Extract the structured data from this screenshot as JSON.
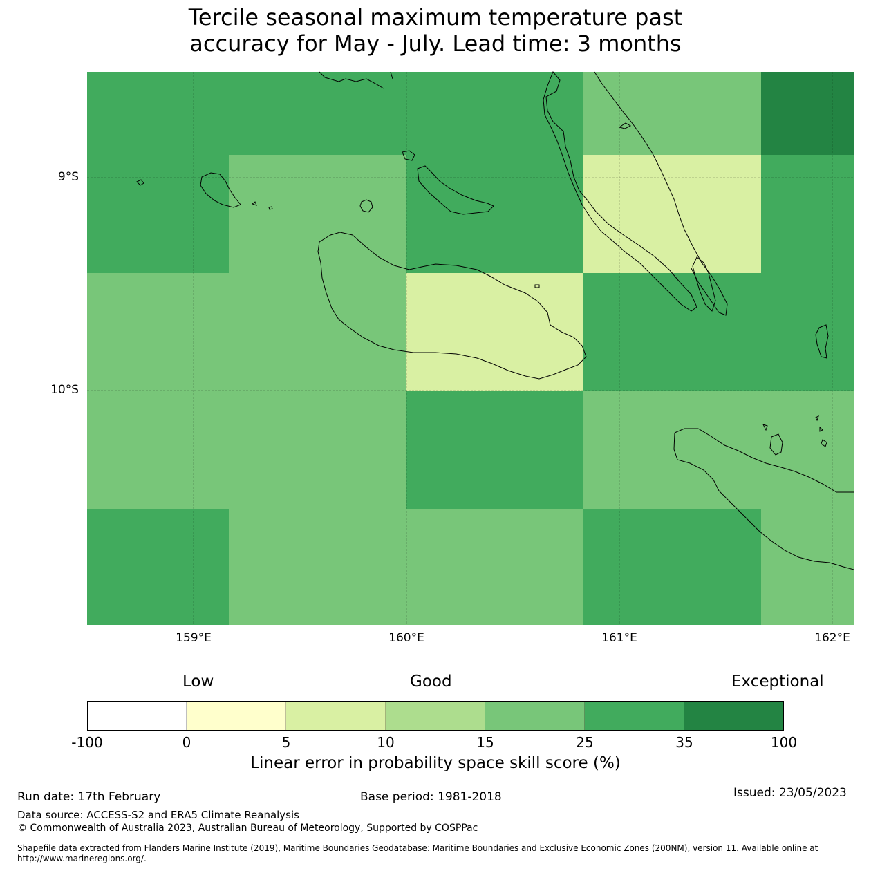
{
  "title_line1": "Tercile seasonal maximum temperature past",
  "title_line2": "accuracy for May - July. Lead time: 3 months",
  "axes": {
    "lat_labels": [
      "9°S",
      "10°S"
    ],
    "lon_labels": [
      "159°E",
      "160°E",
      "161°E",
      "162°E"
    ]
  },
  "skill_grid": {
    "cells": [
      {
        "row": 0,
        "col": 0,
        "category": "25-35"
      },
      {
        "row": 0,
        "col": 1,
        "category": "25-35"
      },
      {
        "row": 0,
        "col": 2,
        "category": "25-35"
      },
      {
        "row": 0,
        "col": 3,
        "category": "15-25"
      },
      {
        "row": 0,
        "col": 4,
        "category": "35-100"
      },
      {
        "row": 1,
        "col": 0,
        "category": "25-35"
      },
      {
        "row": 1,
        "col": 1,
        "category": "15-25"
      },
      {
        "row": 1,
        "col": 2,
        "category": "25-35"
      },
      {
        "row": 1,
        "col": 3,
        "category": "5-10"
      },
      {
        "row": 1,
        "col": 4,
        "category": "25-35"
      },
      {
        "row": 2,
        "col": 0,
        "category": "15-25"
      },
      {
        "row": 2,
        "col": 1,
        "category": "15-25"
      },
      {
        "row": 2,
        "col": 2,
        "category": "5-10"
      },
      {
        "row": 2,
        "col": 3,
        "category": "25-35"
      },
      {
        "row": 2,
        "col": 4,
        "category": "25-35"
      },
      {
        "row": 3,
        "col": 0,
        "category": "15-25"
      },
      {
        "row": 3,
        "col": 1,
        "category": "15-25"
      },
      {
        "row": 3,
        "col": 2,
        "category": "25-35"
      },
      {
        "row": 3,
        "col": 3,
        "category": "15-25"
      },
      {
        "row": 3,
        "col": 4,
        "category": "15-25"
      },
      {
        "row": 4,
        "col": 0,
        "category": "25-35"
      },
      {
        "row": 4,
        "col": 1,
        "category": "15-25"
      },
      {
        "row": 4,
        "col": 2,
        "category": "15-25"
      },
      {
        "row": 4,
        "col": 3,
        "category": "25-35"
      },
      {
        "row": 4,
        "col": 4,
        "category": "15-25"
      }
    ]
  },
  "legend": {
    "category_labels": [
      "Low",
      "Good",
      "Exceptional"
    ],
    "bins": [
      {
        "range": "-100-0",
        "color": "#ffffff"
      },
      {
        "range": "0-5",
        "color": "#ffffcc"
      },
      {
        "range": "5-10",
        "color": "#d9f0a3"
      },
      {
        "range": "10-15",
        "color": "#addd8e"
      },
      {
        "range": "15-25",
        "color": "#78c679"
      },
      {
        "range": "25-35",
        "color": "#41ab5d"
      },
      {
        "range": "35-100",
        "color": "#238443"
      }
    ],
    "ticks": [
      "-100",
      "0",
      "5",
      "10",
      "15",
      "25",
      "35",
      "100"
    ],
    "title": "Linear error in probability space skill score (%)"
  },
  "footer": {
    "run_date": "Run date: 17th February",
    "base_period": "Base period: 1981-2018",
    "issued": "Issued: 23/05/2023",
    "data_source": "Data source: ACCESS-S2 and ERA5 Climate Reanalysis",
    "copyright": "© Commonwealth of Australia 2023, Australian Bureau of Meteorology, Supported by COSPPac",
    "shapefile_line1": "Shapefile data extracted from Flanders Marine Institute (2019), Maritime Boundaries Geodatabase: Maritime Boundaries and Exclusive Economic Zones (200NM), version 11. Available online at",
    "shapefile_line2": "http://www.marineregions.org/."
  }
}
